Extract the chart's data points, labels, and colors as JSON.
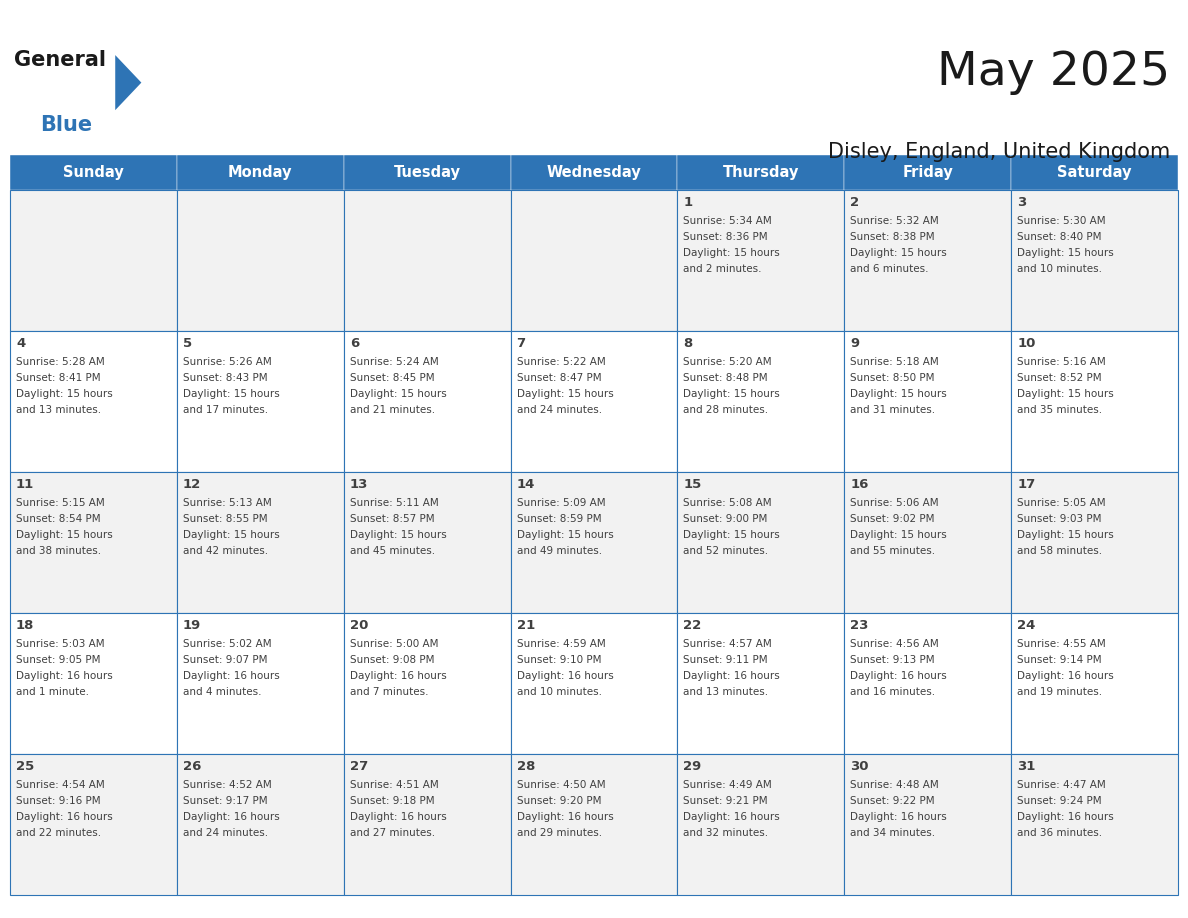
{
  "title": "May 2025",
  "subtitle": "Disley, England, United Kingdom",
  "days_of_week": [
    "Sunday",
    "Monday",
    "Tuesday",
    "Wednesday",
    "Thursday",
    "Friday",
    "Saturday"
  ],
  "header_bg": "#2E74B5",
  "header_text": "#FFFFFF",
  "row_colors": [
    "#F2F2F2",
    "#FFFFFF",
    "#F2F2F2",
    "#FFFFFF",
    "#F2F2F2"
  ],
  "cell_border": "#2E74B5",
  "text_color": "#404040",
  "title_color": "#1a1a1a",
  "logo_text_color": "#1a1a1a",
  "logo_blue_color": "#2E74B5",
  "calendar_data": [
    [
      {
        "day": null,
        "sunrise": null,
        "sunset": null,
        "daylight": null
      },
      {
        "day": null,
        "sunrise": null,
        "sunset": null,
        "daylight": null
      },
      {
        "day": null,
        "sunrise": null,
        "sunset": null,
        "daylight": null
      },
      {
        "day": null,
        "sunrise": null,
        "sunset": null,
        "daylight": null
      },
      {
        "day": 1,
        "sunrise": "5:34 AM",
        "sunset": "8:36 PM",
        "daylight": "15 hours\nand 2 minutes."
      },
      {
        "day": 2,
        "sunrise": "5:32 AM",
        "sunset": "8:38 PM",
        "daylight": "15 hours\nand 6 minutes."
      },
      {
        "day": 3,
        "sunrise": "5:30 AM",
        "sunset": "8:40 PM",
        "daylight": "15 hours\nand 10 minutes."
      }
    ],
    [
      {
        "day": 4,
        "sunrise": "5:28 AM",
        "sunset": "8:41 PM",
        "daylight": "15 hours\nand 13 minutes."
      },
      {
        "day": 5,
        "sunrise": "5:26 AM",
        "sunset": "8:43 PM",
        "daylight": "15 hours\nand 17 minutes."
      },
      {
        "day": 6,
        "sunrise": "5:24 AM",
        "sunset": "8:45 PM",
        "daylight": "15 hours\nand 21 minutes."
      },
      {
        "day": 7,
        "sunrise": "5:22 AM",
        "sunset": "8:47 PM",
        "daylight": "15 hours\nand 24 minutes."
      },
      {
        "day": 8,
        "sunrise": "5:20 AM",
        "sunset": "8:48 PM",
        "daylight": "15 hours\nand 28 minutes."
      },
      {
        "day": 9,
        "sunrise": "5:18 AM",
        "sunset": "8:50 PM",
        "daylight": "15 hours\nand 31 minutes."
      },
      {
        "day": 10,
        "sunrise": "5:16 AM",
        "sunset": "8:52 PM",
        "daylight": "15 hours\nand 35 minutes."
      }
    ],
    [
      {
        "day": 11,
        "sunrise": "5:15 AM",
        "sunset": "8:54 PM",
        "daylight": "15 hours\nand 38 minutes."
      },
      {
        "day": 12,
        "sunrise": "5:13 AM",
        "sunset": "8:55 PM",
        "daylight": "15 hours\nand 42 minutes."
      },
      {
        "day": 13,
        "sunrise": "5:11 AM",
        "sunset": "8:57 PM",
        "daylight": "15 hours\nand 45 minutes."
      },
      {
        "day": 14,
        "sunrise": "5:09 AM",
        "sunset": "8:59 PM",
        "daylight": "15 hours\nand 49 minutes."
      },
      {
        "day": 15,
        "sunrise": "5:08 AM",
        "sunset": "9:00 PM",
        "daylight": "15 hours\nand 52 minutes."
      },
      {
        "day": 16,
        "sunrise": "5:06 AM",
        "sunset": "9:02 PM",
        "daylight": "15 hours\nand 55 minutes."
      },
      {
        "day": 17,
        "sunrise": "5:05 AM",
        "sunset": "9:03 PM",
        "daylight": "15 hours\nand 58 minutes."
      }
    ],
    [
      {
        "day": 18,
        "sunrise": "5:03 AM",
        "sunset": "9:05 PM",
        "daylight": "16 hours\nand 1 minute."
      },
      {
        "day": 19,
        "sunrise": "5:02 AM",
        "sunset": "9:07 PM",
        "daylight": "16 hours\nand 4 minutes."
      },
      {
        "day": 20,
        "sunrise": "5:00 AM",
        "sunset": "9:08 PM",
        "daylight": "16 hours\nand 7 minutes."
      },
      {
        "day": 21,
        "sunrise": "4:59 AM",
        "sunset": "9:10 PM",
        "daylight": "16 hours\nand 10 minutes."
      },
      {
        "day": 22,
        "sunrise": "4:57 AM",
        "sunset": "9:11 PM",
        "daylight": "16 hours\nand 13 minutes."
      },
      {
        "day": 23,
        "sunrise": "4:56 AM",
        "sunset": "9:13 PM",
        "daylight": "16 hours\nand 16 minutes."
      },
      {
        "day": 24,
        "sunrise": "4:55 AM",
        "sunset": "9:14 PM",
        "daylight": "16 hours\nand 19 minutes."
      }
    ],
    [
      {
        "day": 25,
        "sunrise": "4:54 AM",
        "sunset": "9:16 PM",
        "daylight": "16 hours\nand 22 minutes."
      },
      {
        "day": 26,
        "sunrise": "4:52 AM",
        "sunset": "9:17 PM",
        "daylight": "16 hours\nand 24 minutes."
      },
      {
        "day": 27,
        "sunrise": "4:51 AM",
        "sunset": "9:18 PM",
        "daylight": "16 hours\nand 27 minutes."
      },
      {
        "day": 28,
        "sunrise": "4:50 AM",
        "sunset": "9:20 PM",
        "daylight": "16 hours\nand 29 minutes."
      },
      {
        "day": 29,
        "sunrise": "4:49 AM",
        "sunset": "9:21 PM",
        "daylight": "16 hours\nand 32 minutes."
      },
      {
        "day": 30,
        "sunrise": "4:48 AM",
        "sunset": "9:22 PM",
        "daylight": "16 hours\nand 34 minutes."
      },
      {
        "day": 31,
        "sunrise": "4:47 AM",
        "sunset": "9:24 PM",
        "daylight": "16 hours\nand 36 minutes."
      }
    ]
  ]
}
